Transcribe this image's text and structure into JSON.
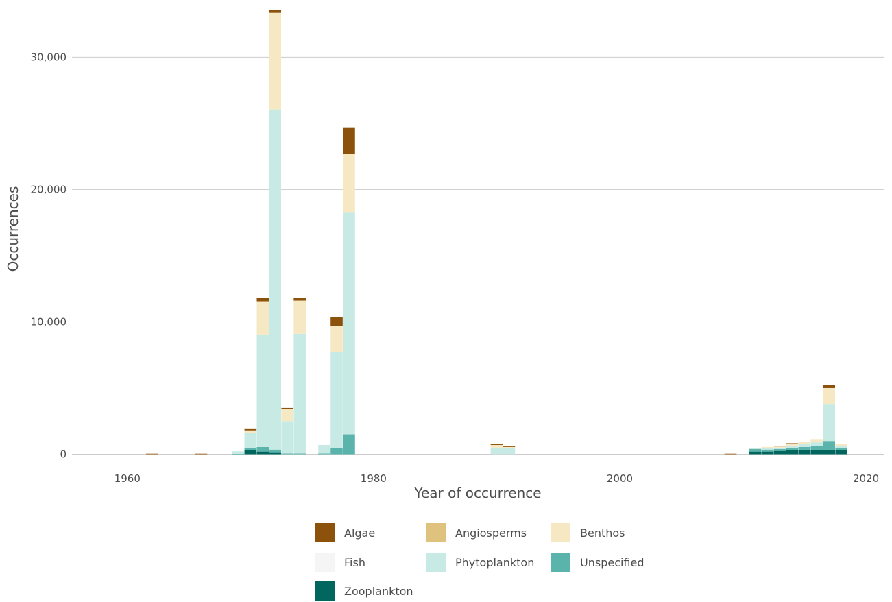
{
  "chart_data": {
    "type": "bar",
    "stacked": true,
    "xlabel": "Year of occurrence",
    "ylabel": "Occurrences",
    "xlim": [
      1955.5,
      2021.5
    ],
    "ylim": [
      -700,
      33800
    ],
    "x_ticks": [
      1960,
      1980,
      2000,
      2020
    ],
    "x_tick_labels": [
      "1960",
      "1980",
      "2000",
      "2020"
    ],
    "y_ticks": [
      0,
      10000,
      20000,
      30000
    ],
    "y_tick_labels": [
      "0",
      "10,000",
      "20,000",
      "30,000"
    ],
    "grid": true,
    "legend_position": "bottom",
    "series": [
      {
        "name": "Zooplankton",
        "color": "#01665e"
      },
      {
        "name": "Unspecified",
        "color": "#5ab4ac"
      },
      {
        "name": "Phytoplankton",
        "color": "#c7eae5"
      },
      {
        "name": "Fish",
        "color": "#f5f5f5"
      },
      {
        "name": "Benthos",
        "color": "#f6e8c3"
      },
      {
        "name": "Angiosperms",
        "color": "#dfc27d"
      },
      {
        "name": "Algae",
        "color": "#8c510a"
      }
    ],
    "legend_order": [
      "Algae",
      "Angiosperms",
      "Benthos",
      "Fish",
      "Phytoplankton",
      "Unspecified",
      "Zooplankton"
    ],
    "bars": [
      {
        "year": 1962,
        "values": {
          "Zooplankton": 0,
          "Unspecified": 0,
          "Phytoplankton": 0,
          "Fish": 0,
          "Benthos": 30,
          "Angiosperms": 0,
          "Algae": 10
        }
      },
      {
        "year": 1966,
        "values": {
          "Zooplankton": 0,
          "Unspecified": 0,
          "Phytoplankton": 0,
          "Fish": 0,
          "Benthos": 30,
          "Angiosperms": 0,
          "Algae": 10
        }
      },
      {
        "year": 1969,
        "values": {
          "Zooplankton": 0,
          "Unspecified": 20,
          "Phytoplankton": 200,
          "Fish": 0,
          "Benthos": 0,
          "Angiosperms": 0,
          "Algae": 0
        }
      },
      {
        "year": 1970,
        "values": {
          "Zooplankton": 300,
          "Unspecified": 200,
          "Phytoplankton": 1100,
          "Fish": 0,
          "Benthos": 200,
          "Angiosperms": 0,
          "Algae": 150
        }
      },
      {
        "year": 1971,
        "values": {
          "Zooplankton": 200,
          "Unspecified": 350,
          "Phytoplankton": 8500,
          "Fish": 0,
          "Benthos": 2500,
          "Angiosperms": 0,
          "Algae": 250
        }
      },
      {
        "year": 1972,
        "values": {
          "Zooplankton": 150,
          "Unspecified": 200,
          "Phytoplankton": 25700,
          "Fish": 0,
          "Benthos": 7300,
          "Angiosperms": 0,
          "Algae": 200
        }
      },
      {
        "year": 1973,
        "values": {
          "Zooplankton": 0,
          "Unspecified": 50,
          "Phytoplankton": 2450,
          "Fish": 0,
          "Benthos": 900,
          "Angiosperms": 0,
          "Algae": 100
        }
      },
      {
        "year": 1974,
        "values": {
          "Zooplankton": 0,
          "Unspecified": 50,
          "Phytoplankton": 9050,
          "Fish": 0,
          "Benthos": 2500,
          "Angiosperms": 0,
          "Algae": 200
        }
      },
      {
        "year": 1976,
        "values": {
          "Zooplankton": 0,
          "Unspecified": 50,
          "Phytoplankton": 650,
          "Fish": 0,
          "Benthos": 0,
          "Angiosperms": 0,
          "Algae": 0
        }
      },
      {
        "year": 1977,
        "values": {
          "Zooplankton": 0,
          "Unspecified": 450,
          "Phytoplankton": 7250,
          "Fish": 0,
          "Benthos": 2000,
          "Angiosperms": 0,
          "Algae": 650
        }
      },
      {
        "year": 1978,
        "values": {
          "Zooplankton": 0,
          "Unspecified": 1500,
          "Phytoplankton": 16800,
          "Fish": 0,
          "Benthos": 4400,
          "Angiosperms": 0,
          "Algae": 2000
        }
      },
      {
        "year": 1990,
        "values": {
          "Zooplankton": 0,
          "Unspecified": 0,
          "Phytoplankton": 500,
          "Fish": 0,
          "Benthos": 200,
          "Angiosperms": 0,
          "Algae": 50
        }
      },
      {
        "year": 1991,
        "values": {
          "Zooplankton": 0,
          "Unspecified": 0,
          "Phytoplankton": 450,
          "Fish": 0,
          "Benthos": 100,
          "Angiosperms": 0,
          "Algae": 50
        }
      },
      {
        "year": 2009,
        "values": {
          "Zooplankton": 0,
          "Unspecified": 0,
          "Phytoplankton": 0,
          "Fish": 0,
          "Benthos": 30,
          "Angiosperms": 0,
          "Algae": 10
        }
      },
      {
        "year": 2011,
        "values": {
          "Zooplankton": 200,
          "Unspecified": 200,
          "Phytoplankton": 50,
          "Fish": 0,
          "Benthos": 20,
          "Angiosperms": 0,
          "Algae": 0
        }
      },
      {
        "year": 2012,
        "values": {
          "Zooplankton": 200,
          "Unspecified": 150,
          "Phytoplankton": 100,
          "Fish": 0,
          "Benthos": 100,
          "Angiosperms": 0,
          "Algae": 0
        }
      },
      {
        "year": 2013,
        "values": {
          "Zooplankton": 250,
          "Unspecified": 150,
          "Phytoplankton": 100,
          "Fish": 0,
          "Benthos": 100,
          "Angiosperms": 0,
          "Algae": 30
        }
      },
      {
        "year": 2014,
        "values": {
          "Zooplankton": 300,
          "Unspecified": 200,
          "Phytoplankton": 150,
          "Fish": 0,
          "Benthos": 150,
          "Angiosperms": 0,
          "Algae": 30
        }
      },
      {
        "year": 2015,
        "values": {
          "Zooplankton": 350,
          "Unspecified": 200,
          "Phytoplankton": 200,
          "Fish": 0,
          "Benthos": 200,
          "Angiosperms": 0,
          "Algae": 0
        }
      },
      {
        "year": 2016,
        "values": {
          "Zooplankton": 300,
          "Unspecified": 300,
          "Phytoplankton": 300,
          "Fish": 0,
          "Benthos": 250,
          "Angiosperms": 0,
          "Algae": 0
        }
      },
      {
        "year": 2017,
        "values": {
          "Zooplankton": 350,
          "Unspecified": 650,
          "Phytoplankton": 2800,
          "Fish": 0,
          "Benthos": 1200,
          "Angiosperms": 0,
          "Algae": 250
        }
      },
      {
        "year": 2018,
        "values": {
          "Zooplankton": 300,
          "Unspecified": 200,
          "Phytoplankton": 100,
          "Fish": 0,
          "Benthos": 150,
          "Angiosperms": 0,
          "Algae": 0
        }
      }
    ]
  }
}
